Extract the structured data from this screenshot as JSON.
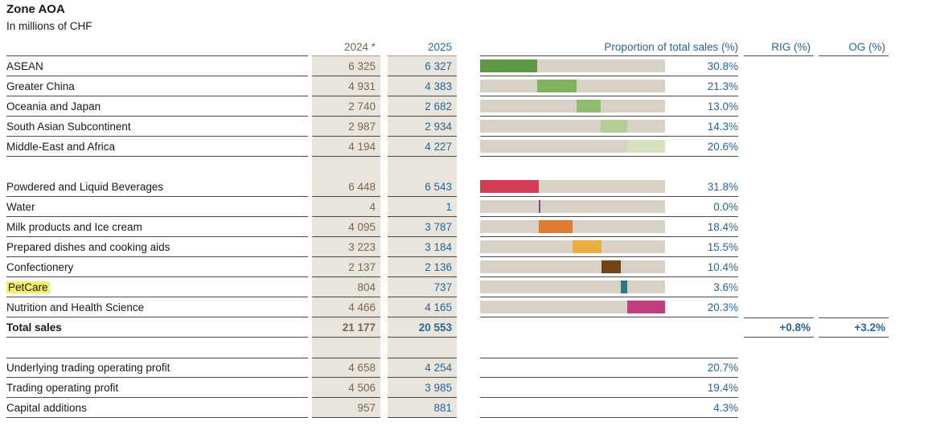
{
  "title": "Zone AOA",
  "subtitle": "In millions of CHF",
  "header": {
    "y2024": "2024 *",
    "y2025": "2025",
    "proportion": "Proportion of total sales (%)",
    "rig": "RIG (%)",
    "og": "OG (%)"
  },
  "colors": {
    "accent_blue": "#26679b",
    "value_2024_olive": "#75694f",
    "band_background": "#e9e4dc",
    "bar_track": "#d8d1c6",
    "row_rule": "#4a4a4a",
    "petcare_highlight": "#f7ee6d"
  },
  "sections": {
    "geo": {
      "rows": [
        {
          "label": "ASEAN",
          "v2024": "6 325",
          "v2025": "6 327",
          "pct": "30.8%",
          "pct_num": 30.8,
          "offset": 0,
          "color": "#5f9844"
        },
        {
          "label": "Greater China",
          "v2024": "4 931",
          "v2025": "4 383",
          "pct": "21.3%",
          "pct_num": 21.3,
          "offset": 30.8,
          "color": "#80b35e"
        },
        {
          "label": "Oceania and Japan",
          "v2024": "2 740",
          "v2025": "2 682",
          "pct": "13.0%",
          "pct_num": 13.0,
          "offset": 52.1,
          "color": "#90bd71"
        },
        {
          "label": "South Asian Subcontinent",
          "v2024": "2 987",
          "v2025": "2 934",
          "pct": "14.3%",
          "pct_num": 14.3,
          "offset": 65.1,
          "color": "#b1cf94"
        },
        {
          "label": "Middle-East and Africa",
          "v2024": "4 194",
          "v2025": "4 227",
          "pct": "20.6%",
          "pct_num": 20.6,
          "offset": 79.4,
          "color": "#d4e2bf"
        }
      ]
    },
    "products": {
      "rows": [
        {
          "label": "Powdered and Liquid Beverages",
          "v2024": "6 448",
          "v2025": "6 543",
          "pct": "31.8%",
          "pct_num": 31.8,
          "offset": 0,
          "color": "#d23d55"
        },
        {
          "label": "Water",
          "v2024": "4",
          "v2025": "1",
          "pct": "0.0%",
          "pct_num": 0.0,
          "offset": 31.8,
          "color": "#7a4b8d",
          "thin": true
        },
        {
          "label": "Milk products and Ice cream",
          "v2024": "4 095",
          "v2025": "3 787",
          "pct": "18.4%",
          "pct_num": 18.4,
          "offset": 31.8,
          "color": "#df7c2f"
        },
        {
          "label": "Prepared dishes and cooking aids",
          "v2024": "3 223",
          "v2025": "3 184",
          "pct": "15.5%",
          "pct_num": 15.5,
          "offset": 50.2,
          "color": "#eaaf3e"
        },
        {
          "label": "Confectionery",
          "v2024": "2 137",
          "v2025": "2 136",
          "pct": "10.4%",
          "pct_num": 10.4,
          "offset": 65.7,
          "color": "#6f4517"
        },
        {
          "label": "PetCare",
          "v2024": "804",
          "v2025": "737",
          "pct": "3.6%",
          "pct_num": 3.6,
          "offset": 76.1,
          "color": "#2a7983",
          "highlighted": true
        },
        {
          "label": "Nutrition and Health Science",
          "v2024": "4 466",
          "v2025": "4 165",
          "pct": "20.3%",
          "pct_num": 20.3,
          "offset": 79.7,
          "color": "#c23e7c"
        }
      ],
      "total": {
        "label": "Total sales",
        "v2024": "21 177",
        "v2025": "20 553",
        "rig": "+0.8%",
        "og": "+3.2%"
      }
    },
    "profit": {
      "rows": [
        {
          "label": "Underlying trading operating profit",
          "v2024": "4 658",
          "v2025": "4 254",
          "pct": "20.7%"
        },
        {
          "label": "Trading operating profit",
          "v2024": "4 506",
          "v2025": "3 985",
          "pct": "19.4%"
        },
        {
          "label": "Capital additions",
          "v2024": "957",
          "v2025": "881",
          "pct": "4.3%"
        }
      ]
    }
  }
}
